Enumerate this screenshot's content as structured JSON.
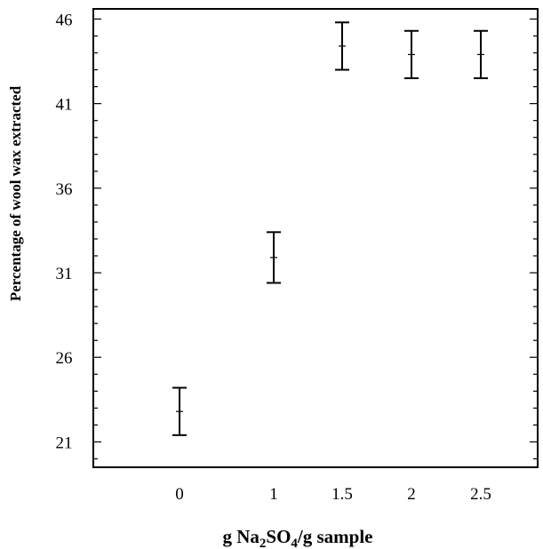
{
  "chart_data": {
    "type": "scatter",
    "title": "",
    "xlabel": {
      "pre": "g Na",
      "sub1": "2",
      "mid": "SO",
      "sub2": "4",
      "post": "/g sample"
    },
    "ylabel": "Percentage of wool wax extracted",
    "x_categories": [
      "0",
      "1",
      "1.5",
      "2",
      "2.5"
    ],
    "ylim": [
      19.5,
      46.6
    ],
    "yticks": [
      21,
      26,
      31,
      36,
      41,
      46
    ],
    "y_minor_step": 1,
    "grid": false,
    "points": [
      {
        "x": "0",
        "y": 22.8,
        "ylow": 21.4,
        "yhigh": 24.2
      },
      {
        "x": "1",
        "y": 31.9,
        "ylow": 30.4,
        "yhigh": 33.4
      },
      {
        "x": "1.5",
        "y": 44.4,
        "ylow": 43.0,
        "yhigh": 45.8
      },
      {
        "x": "2",
        "y": 43.9,
        "ylow": 42.5,
        "yhigh": 45.3
      },
      {
        "x": "2.5",
        "y": 43.9,
        "ylow": 42.5,
        "yhigh": 45.3
      }
    ]
  }
}
